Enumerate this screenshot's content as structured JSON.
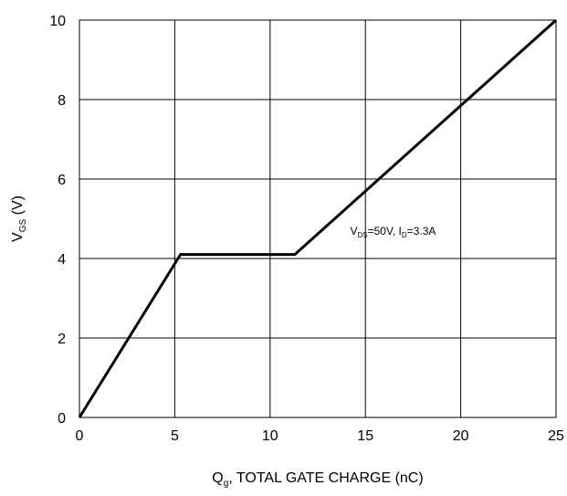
{
  "chart_data": {
    "type": "line",
    "xlabel": {
      "main": "Q",
      "sub": "g",
      "rest": ", TOTAL GATE CHARGE (nC)"
    },
    "ylabel": {
      "main": "V",
      "sub": "GS",
      "rest": " (V)"
    },
    "xlim": [
      0,
      25
    ],
    "ylim": [
      0,
      10
    ],
    "x_ticks": [
      "0",
      "5",
      "10",
      "15",
      "20",
      "25"
    ],
    "y_ticks": [
      "0",
      "2",
      "4",
      "6",
      "8",
      "10"
    ],
    "grid": true,
    "series": [
      {
        "x": [
          0,
          5.3,
          11.3,
          25
        ],
        "y": [
          0,
          4.1,
          4.1,
          10
        ],
        "color": "#000000"
      }
    ],
    "annotation": {
      "parts": [
        {
          "text": "V",
          "sub": false
        },
        {
          "text": "DS",
          "sub": true
        },
        {
          "text": "=50V, I",
          "sub": false
        },
        {
          "text": "D",
          "sub": true
        },
        {
          "text": "=3.3A",
          "sub": false
        }
      ],
      "x": 14.2,
      "y": 4.6
    }
  }
}
